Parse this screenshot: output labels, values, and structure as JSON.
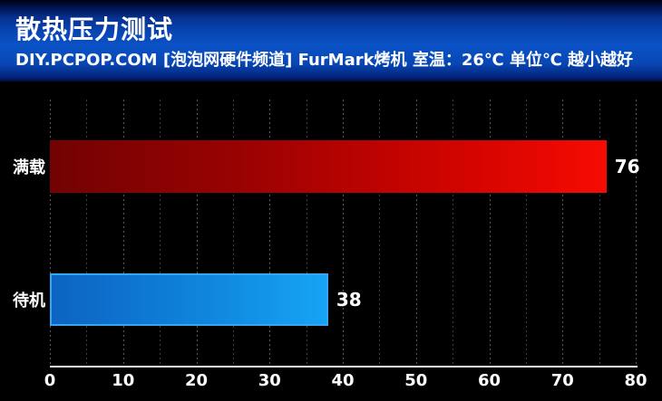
{
  "chart_data": {
    "type": "bar",
    "orientation": "horizontal",
    "title": "散热压力测试",
    "subtitle": "DIY.PCPOP.COM [泡泡网硬件频道] FurMark烤机 室温：26℃ 单位℃ 越小越好",
    "source": "DIY.PCPOP.COM",
    "channel": "泡泡网硬件频道",
    "test_tool": "FurMark烤机",
    "room_temp": "26℃",
    "unit": "℃",
    "note": "越小越好",
    "categories": [
      "满载",
      "待机"
    ],
    "values": [
      76,
      38
    ],
    "xlim": [
      0,
      80
    ],
    "x_ticks": [
      0,
      10,
      20,
      30,
      40,
      50,
      60,
      70,
      80
    ],
    "x_tick_step": 10,
    "gridline_step": 5,
    "grid": "vertical-dotted",
    "legend_position": "none",
    "colors": {
      "background": "#000000",
      "axis_line": "#ededed",
      "grid_major": "#5a5a5a",
      "grid_minor": "#3e3e3e",
      "text": "#ffffff",
      "header_top": "#000010",
      "header_blue": "#0a52c6"
    },
    "bar_styles": [
      {
        "name": "red",
        "gradient": [
          "#730202 0%",
          "#9b0202 35%",
          "#d40400 75%",
          "#f60b02 100%"
        ],
        "border": null
      },
      {
        "name": "blue",
        "gradient": [
          "#0d63c2 0%",
          "#0f85dc 55%",
          "#16a4f4 100%"
        ],
        "border": "#37a6f2"
      }
    ]
  }
}
